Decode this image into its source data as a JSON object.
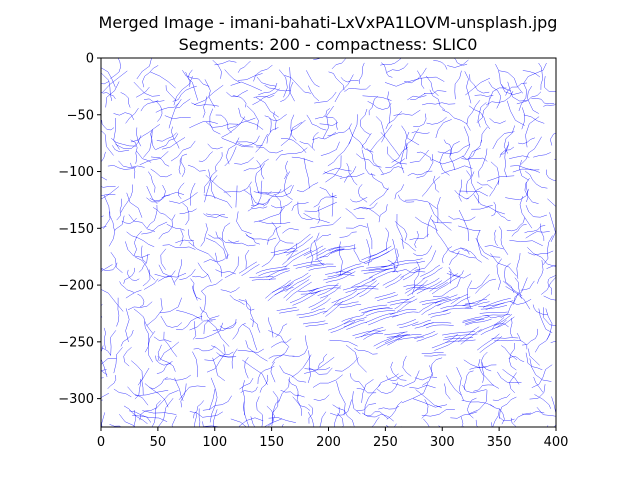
{
  "chart_data": {
    "type": "image",
    "title_line1": "Merged Image - imani-bahati-LxVxPA1LOVM-unsplash.jpg",
    "title_line2": "Segments: 200 - compactness: SLIC0",
    "xlim": [
      0,
      400
    ],
    "ylim": [
      -325,
      0
    ],
    "x_ticks": [
      0,
      50,
      100,
      150,
      200,
      250,
      300,
      350,
      400
    ],
    "y_ticks": [
      0,
      -50,
      -100,
      -150,
      -200,
      -250,
      -300
    ],
    "line_color": "#0000ff"
  }
}
